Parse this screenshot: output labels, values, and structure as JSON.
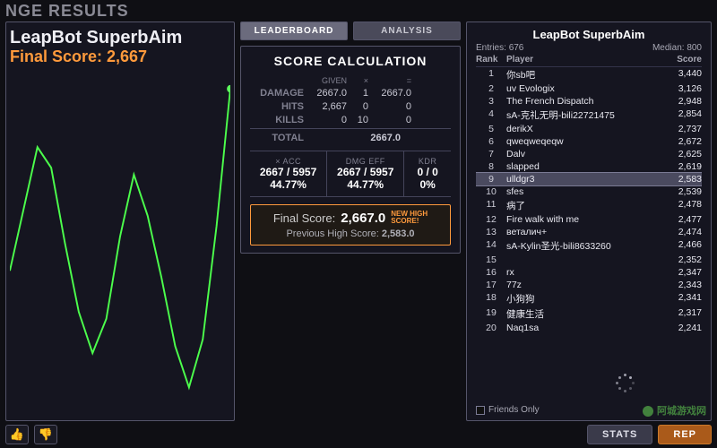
{
  "header": {
    "title": "NGE RESULTS"
  },
  "colors": {
    "bg": "#0f0f14",
    "panel_border": "#55556a",
    "accent_orange": "#ff9a3c",
    "line_color": "#4cff4c",
    "grid": "#2a2a3a"
  },
  "chart": {
    "title": "LeapBot SuperbAim",
    "subtitle": "Final Score: 2,667",
    "type": "line",
    "line_color": "#4cff4c",
    "line_width": 2,
    "marker_color": "#5cff5c",
    "background": "#151520",
    "xlim": [
      0,
      16
    ],
    "ylim": [
      0,
      100
    ],
    "points_y": [
      42,
      60,
      78,
      72,
      50,
      30,
      18,
      28,
      52,
      70,
      58,
      40,
      20,
      8,
      22,
      55,
      95
    ]
  },
  "tabs": {
    "leaderboard": "LEADERBOARD",
    "analysis": "ANALYSIS"
  },
  "calc": {
    "title": "SCORE CALCULATION",
    "head_given": "GIVEN",
    "head_x": "×",
    "head_eq": "=",
    "rows": [
      {
        "label": "DAMAGE",
        "given": "2667.0",
        "x": "1",
        "eq": "2667.0"
      },
      {
        "label": "HITS",
        "given": "2,667",
        "x": "0",
        "eq": "0"
      },
      {
        "label": "KILLS",
        "given": "0",
        "x": "10",
        "eq": "0"
      }
    ],
    "total_label": "TOTAL",
    "total_value": "2667.0",
    "stats": {
      "acc": {
        "label": "× ACC",
        "line1": "2667 / 5957",
        "line2": "44.77%"
      },
      "eff": {
        "label": "DMG EFF",
        "line1": "2667 / 5957",
        "line2": "44.77%"
      },
      "kdr": {
        "label": "KDR",
        "line1": "0 / 0",
        "line2": "0%"
      }
    },
    "final_label": "Final Score:",
    "final_value": "2,667.0",
    "badge_l1": "NEW HIGH",
    "badge_l2": "SCORE!",
    "prev_label": "Previous High Score:",
    "prev_value": "2,583.0"
  },
  "board": {
    "title": "LeapBot SuperbAim",
    "entries_label": "Entries:",
    "entries_value": "676",
    "median_label": "Median:",
    "median_value": "800",
    "head_rank": "Rank",
    "head_player": "Player",
    "head_score": "Score",
    "highlight_index": 8,
    "rows": [
      {
        "rank": "1",
        "player": "你sb吧",
        "score": "3,440"
      },
      {
        "rank": "2",
        "player": "uv Evologix",
        "score": "3,126"
      },
      {
        "rank": "3",
        "player": "The French Dispatch",
        "score": "2,948"
      },
      {
        "rank": "4",
        "player": "sA-克礼无明-bili22721475",
        "score": "2,854"
      },
      {
        "rank": "5",
        "player": "derikX",
        "score": "2,737"
      },
      {
        "rank": "6",
        "player": "qweqweqeqw",
        "score": "2,672"
      },
      {
        "rank": "7",
        "player": "Dalv",
        "score": "2,625"
      },
      {
        "rank": "8",
        "player": "slapped",
        "score": "2,619"
      },
      {
        "rank": "9",
        "player": "ulldgr3",
        "score": "2,583"
      },
      {
        "rank": "10",
        "player": "sfes",
        "score": "2,539"
      },
      {
        "rank": "11",
        "player": "病了",
        "score": "2,478"
      },
      {
        "rank": "12",
        "player": "Fire walk with me",
        "score": "2,477"
      },
      {
        "rank": "13",
        "player": "веталич+",
        "score": "2,474"
      },
      {
        "rank": "14",
        "player": "sA-Kylin圣光-bili8633260",
        "score": "2,466"
      },
      {
        "rank": "15",
        "player": "",
        "score": "2,352"
      },
      {
        "rank": "16",
        "player": "rx",
        "score": "2,347"
      },
      {
        "rank": "17",
        "player": "77z",
        "score": "2,343"
      },
      {
        "rank": "18",
        "player": "小狗狗",
        "score": "2,341"
      },
      {
        "rank": "19",
        "player": "健康生活",
        "score": "2,317"
      },
      {
        "rank": "20",
        "player": "Naq1sa",
        "score": "2,241"
      }
    ],
    "friends_label": "Friends Only"
  },
  "footer": {
    "stats": "STATS",
    "rep": "REP"
  },
  "watermark": "阿城游戏网"
}
